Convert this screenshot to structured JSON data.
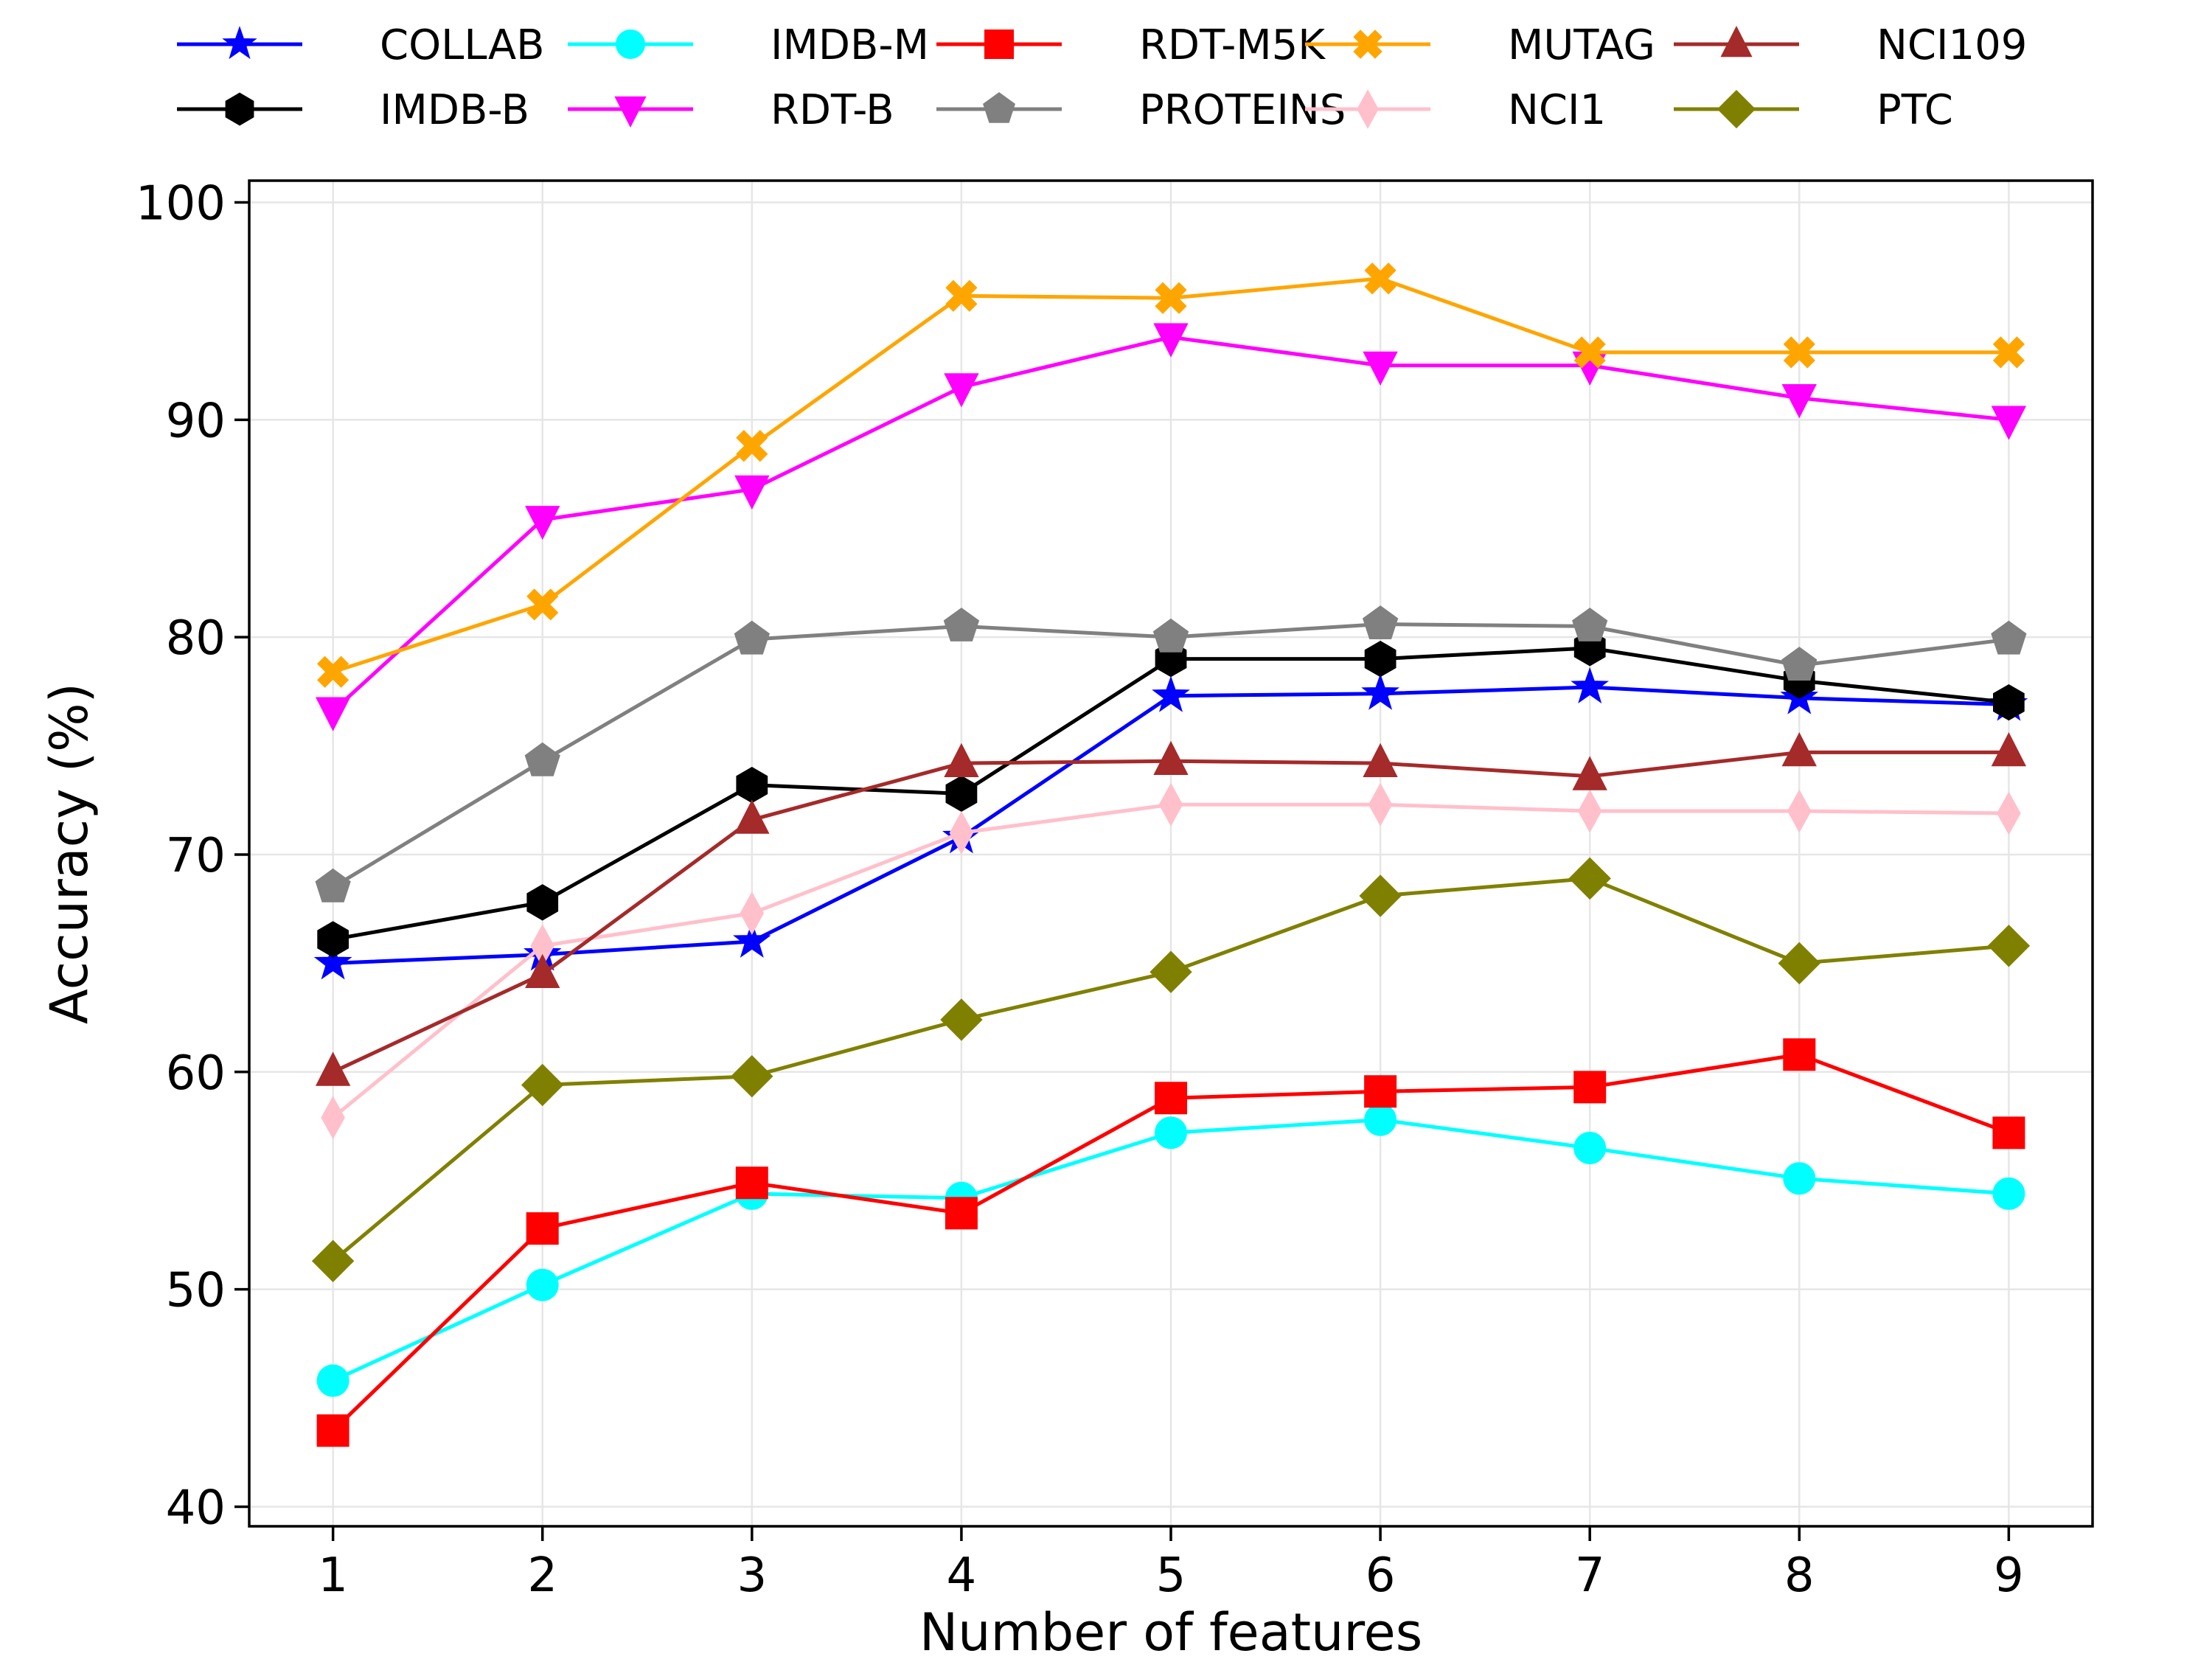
{
  "chart_data": {
    "type": "line",
    "title": "",
    "xlabel": "Number of features",
    "ylabel": "Accuracy (%)",
    "x": [
      1,
      2,
      3,
      4,
      5,
      6,
      7,
      8,
      9
    ],
    "xlim": [
      0.6,
      9.4
    ],
    "ylim": [
      39.1,
      101.0
    ],
    "yticks": [
      40,
      50,
      60,
      70,
      80,
      90,
      100
    ],
    "grid": true,
    "legend_position": "top, above plot, 6 columns",
    "series": [
      {
        "name": "COLLAB",
        "color": "#0000ff",
        "marker": "star",
        "values": [
          65.0,
          65.4,
          66.0,
          70.8,
          77.3,
          77.4,
          77.7,
          77.2,
          76.9
        ]
      },
      {
        "name": "IMDB-B",
        "color": "#000000",
        "marker": "hexagon",
        "values": [
          66.1,
          67.8,
          73.2,
          72.8,
          79.0,
          79.0,
          79.5,
          78.0,
          77.0
        ]
      },
      {
        "name": "IMDB-M",
        "color": "#00ffff",
        "marker": "circle",
        "values": [
          45.8,
          50.2,
          54.4,
          54.2,
          57.2,
          57.8,
          56.5,
          55.1,
          54.4
        ]
      },
      {
        "name": "RDT-B",
        "color": "#ff00ff",
        "marker": "triangle-down",
        "values": [
          76.6,
          85.4,
          86.8,
          91.5,
          93.8,
          92.5,
          92.5,
          91.0,
          90.0
        ]
      },
      {
        "name": "RDT-M5K",
        "color": "#ff0000",
        "marker": "square",
        "values": [
          43.5,
          52.8,
          54.9,
          53.5,
          58.8,
          59.1,
          59.3,
          60.8,
          57.2
        ]
      },
      {
        "name": "PROTEINS",
        "color": "#808080",
        "marker": "pentagon",
        "values": [
          68.5,
          74.3,
          79.9,
          80.5,
          80.0,
          80.6,
          80.5,
          78.7,
          79.9
        ]
      },
      {
        "name": "MUTAG",
        "color": "#ffa500",
        "marker": "x-filled",
        "values": [
          78.4,
          81.5,
          88.8,
          95.7,
          95.6,
          96.5,
          93.1,
          93.1,
          93.1
        ]
      },
      {
        "name": "NCI1",
        "color": "#ffc0cb",
        "marker": "thin-diamond",
        "values": [
          57.9,
          65.8,
          67.3,
          71.0,
          72.3,
          72.3,
          72.0,
          72.0,
          71.9
        ]
      },
      {
        "name": "NCI109",
        "color": "#a52a2a",
        "marker": "triangle-up",
        "values": [
          60.0,
          64.5,
          71.6,
          74.2,
          74.3,
          74.2,
          73.6,
          74.7,
          74.7
        ]
      },
      {
        "name": "PTC",
        "color": "#808000",
        "marker": "diamond",
        "values": [
          51.3,
          59.4,
          59.8,
          62.4,
          64.6,
          68.1,
          68.9,
          65.0,
          65.8
        ]
      }
    ]
  }
}
